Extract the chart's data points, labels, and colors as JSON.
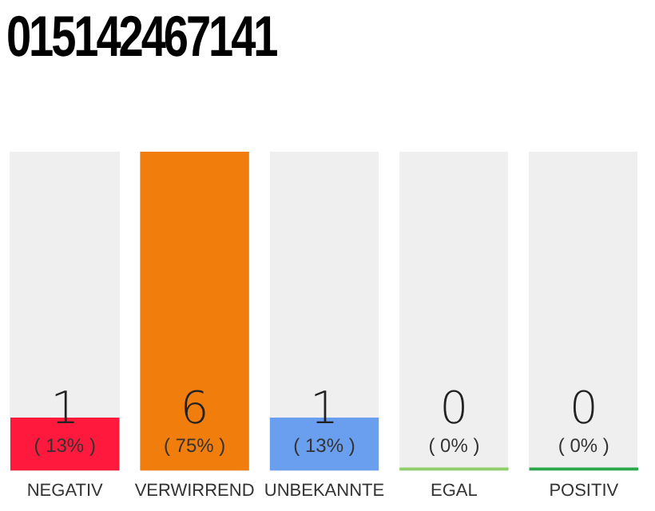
{
  "chart_data": {
    "type": "bar",
    "title": "015142467141",
    "categories": [
      "NEGATIV",
      "VERWIRREND",
      "UNBEKANNTE",
      "EGAL",
      "POSITIV"
    ],
    "values": [
      1,
      6,
      1,
      0,
      0
    ],
    "colors": [
      "#ff1a3d",
      "#f07d0c",
      "#6a9ff0",
      "#8fcf6a",
      "#2aa84a"
    ],
    "annotations": [
      "( 13% )",
      "( 75% )",
      "( 13% )",
      "( 0% )",
      "( 0% )"
    ],
    "data_labels": true,
    "grid": false,
    "legend": false
  }
}
